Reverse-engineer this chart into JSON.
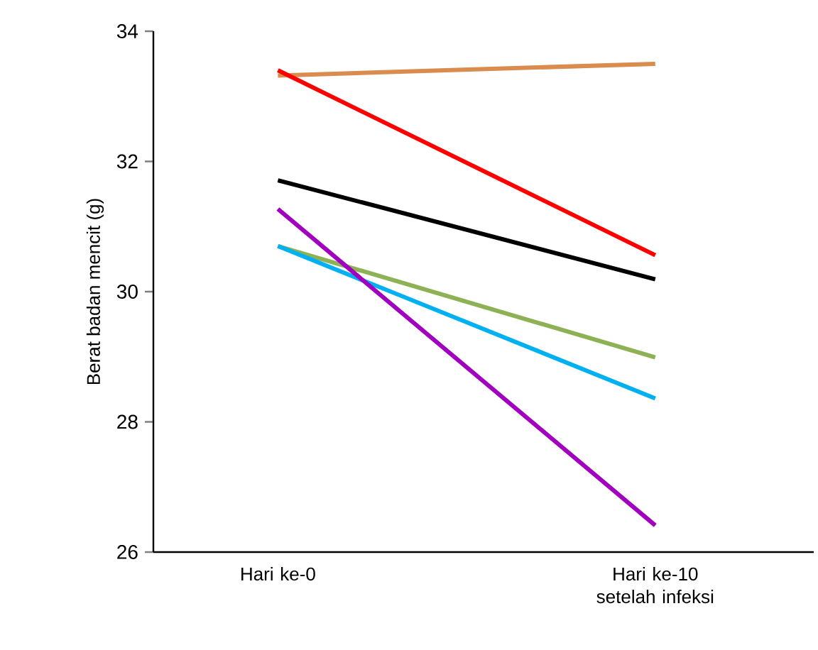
{
  "chart_data": {
    "type": "line",
    "ylabel": "Berat badan mencit  (g)",
    "categories": [
      "Hari ke-0",
      "Hari ke-10 setelah infeksi"
    ],
    "ylim": [
      26,
      34
    ],
    "yticks": [
      26,
      28,
      30,
      32,
      34
    ],
    "grid": false,
    "marker": "none",
    "line_style": "solid",
    "series": [
      {
        "color": "#d98c4e",
        "values": [
          33.32,
          33.5
        ]
      },
      {
        "color": "#ff0000",
        "values": [
          33.4,
          30.56
        ]
      },
      {
        "color": "#000000",
        "values": [
          31.71,
          30.19
        ]
      },
      {
        "color": "#8db255",
        "values": [
          30.7,
          28.99
        ]
      },
      {
        "color": "#00b0f0",
        "values": [
          30.7,
          28.36
        ]
      },
      {
        "color": "#a100bf",
        "values": [
          31.27,
          26.41
        ]
      }
    ]
  }
}
